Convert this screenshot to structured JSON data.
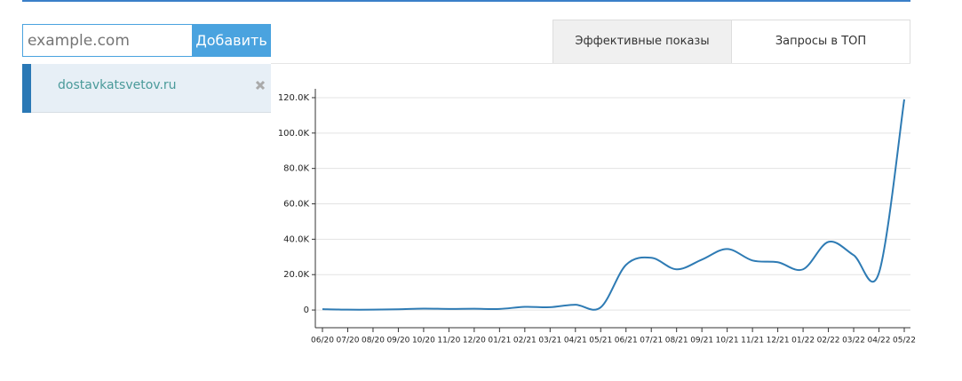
{
  "search": {
    "placeholder": "example.com",
    "button": "Добавить"
  },
  "sites": [
    {
      "name": "dostavkatsvetov.ru"
    }
  ],
  "tabs": [
    {
      "label": "Эффективные показы",
      "active": true
    },
    {
      "label": "Запросы в ТОП",
      "active": false
    }
  ],
  "chart_data": {
    "type": "line",
    "categories": [
      "06/20",
      "07/20",
      "08/20",
      "09/20",
      "10/20",
      "11/20",
      "12/20",
      "01/21",
      "02/21",
      "03/21",
      "04/21",
      "05/21",
      "06/21",
      "07/21",
      "08/21",
      "09/21",
      "10/21",
      "11/21",
      "12/21",
      "01/22",
      "02/22",
      "03/22",
      "04/22",
      "05/22"
    ],
    "values": [
      500,
      200,
      200,
      400,
      800,
      600,
      700,
      600,
      1800,
      1600,
      3000,
      1500,
      25500,
      29500,
      23000,
      28500,
      34500,
      28000,
      27000,
      23000,
      38500,
      31000,
      21000,
      119000
    ],
    "color": "#2e7bb4",
    "ylim": [
      -10000,
      125000
    ],
    "yticks": [
      0,
      {
        "value": 20000,
        "label": "20.0K"
      },
      {
        "value": 40000,
        "label": "40.0K"
      },
      {
        "value": 60000,
        "label": "60.0K"
      },
      {
        "value": 80000,
        "label": "80.0K"
      },
      {
        "value": 100000,
        "label": "100.0K"
      },
      {
        "value": 120000,
        "label": "120.0K"
      }
    ],
    "grid": true
  }
}
